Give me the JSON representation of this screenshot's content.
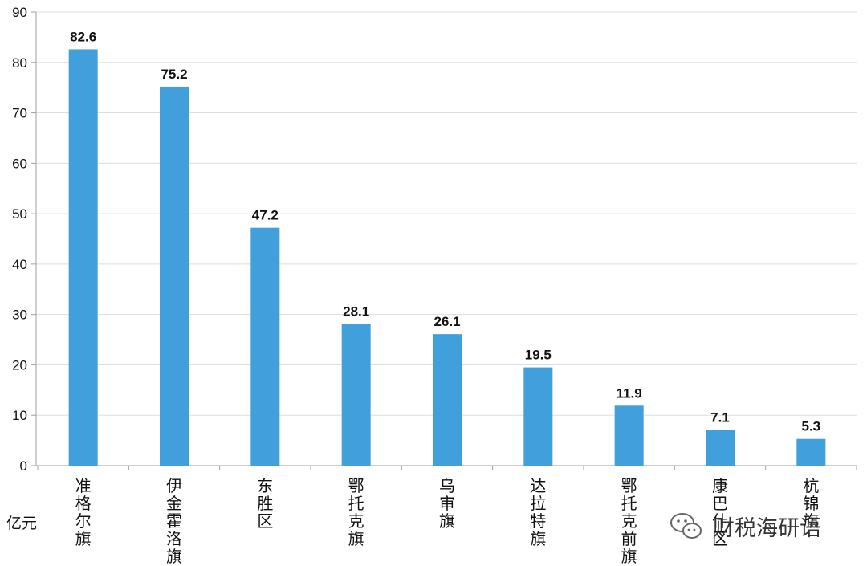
{
  "chart_data": {
    "type": "bar",
    "categories": [
      "准格尔旗",
      "伊金霍洛旗",
      "东胜区",
      "鄂托克旗",
      "乌审旗",
      "达拉特旗",
      "鄂托克前旗",
      "康巴什区",
      "杭锦旗"
    ],
    "values": [
      82.6,
      75.2,
      47.2,
      28.1,
      26.1,
      19.5,
      11.9,
      7.1,
      5.3
    ],
    "value_labels": [
      "82.6",
      "75.2",
      "47.2",
      "28.1",
      "26.1",
      "19.5",
      "11.9",
      "7.1",
      "5.3"
    ],
    "yticks": [
      0,
      10,
      20,
      30,
      40,
      50,
      60,
      70,
      80,
      90
    ],
    "ylim": [
      0,
      90
    ],
    "unit": "亿元",
    "grid": true,
    "bar_color": "#419fdb"
  },
  "watermark": {
    "text": "财税海研语",
    "icon": "wechat-icon"
  }
}
